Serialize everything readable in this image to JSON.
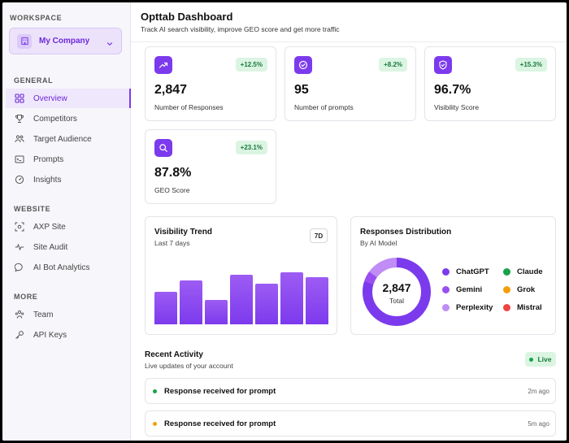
{
  "sidebar": {
    "workspace_label": "WORKSPACE",
    "workspace_name": "My Company",
    "sections": {
      "general": "GENERAL",
      "website": "WEBSITE",
      "more": "MORE"
    },
    "general_items": [
      {
        "label": "Overview",
        "icon": "grid-icon",
        "active": true
      },
      {
        "label": "Competitors",
        "icon": "trophy-icon"
      },
      {
        "label": "Target Audience",
        "icon": "people-icon"
      },
      {
        "label": "Prompts",
        "icon": "terminal-icon"
      },
      {
        "label": "Insights",
        "icon": "gauge-icon"
      }
    ],
    "website_items": [
      {
        "label": "AXP Site",
        "icon": "scan-icon"
      },
      {
        "label": "Site Audit",
        "icon": "pulse-icon"
      },
      {
        "label": "AI Bot Analytics",
        "icon": "chat-icon"
      }
    ],
    "more_items": [
      {
        "label": "Team",
        "icon": "team-icon"
      },
      {
        "label": "API Keys",
        "icon": "key-icon"
      }
    ]
  },
  "header": {
    "title": "Opttab Dashboard",
    "subtitle": "Track AI search visibility, improve GEO score and get more traffic"
  },
  "stats": [
    {
      "value": "2,847",
      "label": "Number of Responses",
      "change": "+12.5%",
      "icon": "trend-up-icon"
    },
    {
      "value": "95",
      "label": "Number of prompts",
      "change": "+8.2%",
      "icon": "check-circle-icon"
    },
    {
      "value": "96.7%",
      "label": "Visibility Score",
      "change": "+15.3%",
      "icon": "shield-check-icon"
    },
    {
      "value": "87.8%",
      "label": "GEO Score",
      "change": "+23.1%",
      "icon": "search-icon"
    }
  ],
  "visibility_trend": {
    "title": "Visibility Trend",
    "subtitle": "Last 7 days",
    "range_button": "7D"
  },
  "distribution": {
    "title": "Responses Distribution",
    "subtitle": "By AI Model",
    "total_value": "2,847",
    "total_label": "Total"
  },
  "chart_data": [
    {
      "type": "bar",
      "title": "Visibility Trend",
      "subtitle": "Last 7 days",
      "categories": [
        "",
        "",
        "",
        "",
        "",
        "",
        ""
      ],
      "values": [
        50,
        67,
        37,
        76,
        63,
        80,
        72
      ],
      "ylim": [
        0,
        100
      ],
      "color": "#8b45ef"
    },
    {
      "type": "pie",
      "title": "Responses Distribution",
      "subtitle": "By AI Model",
      "labels": [
        "ChatGPT",
        "Gemini",
        "Perplexity",
        "Claude",
        "Grok",
        "Mistral"
      ],
      "values": [
        80,
        5,
        15,
        0,
        0,
        0
      ],
      "colors": [
        "#7c3aed",
        "#9b4ef0",
        "#c08cf5",
        "#16a34a",
        "#f59e0b",
        "#ef4444"
      ]
    }
  ],
  "activity": {
    "title": "Recent Activity",
    "subtitle": "Live updates of your account",
    "live_label": "Live",
    "items": [
      {
        "text": "Response received for prompt",
        "time": "2m ago",
        "color": "#16a34a"
      },
      {
        "text": "Response received for prompt",
        "time": "5m ago",
        "color": "#f59e0b"
      }
    ]
  }
}
